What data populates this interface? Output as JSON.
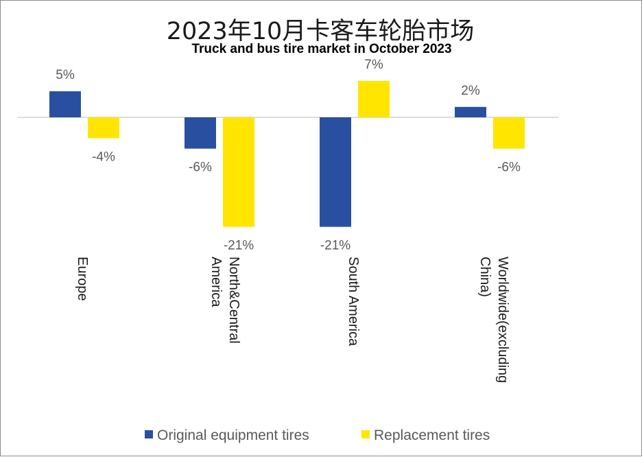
{
  "chart_data": {
    "type": "bar",
    "title": "2023年10月卡客车轮胎市场",
    "subtitle": "Truck and bus tire market in October 2023",
    "categories": [
      [
        "Europe"
      ],
      [
        "North&Central",
        "America"
      ],
      [
        "South America"
      ],
      [
        "Worldwide(excluding",
        "China)"
      ]
    ],
    "series": [
      {
        "name": "Original equipment tires",
        "color": "#2950A0",
        "values": [
          5,
          -6,
          -21,
          2
        ],
        "labels": [
          "5%",
          "-6%",
          "-21%",
          "2%"
        ]
      },
      {
        "name": "Replacement tires",
        "color": "#FFE500",
        "values": [
          -4,
          -21,
          7,
          -6
        ],
        "labels": [
          "-4%",
          "-21%",
          "7%",
          "-6%"
        ]
      }
    ],
    "xlabel": "",
    "ylabel": "",
    "ylim": [
      -21,
      7
    ],
    "grid": false,
    "legend_position": "bottom",
    "category_label_orientation": "vertical"
  }
}
